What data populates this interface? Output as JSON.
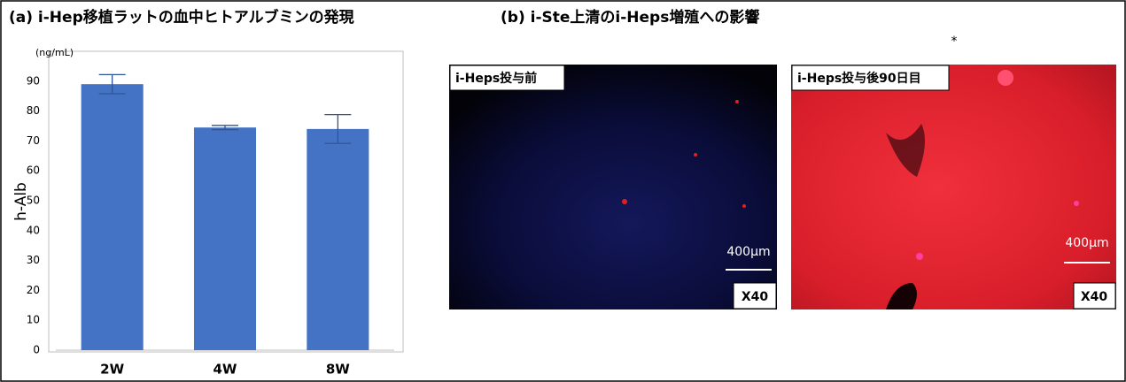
{
  "chart_data": {
    "type": "bar",
    "title": "(a) i-Hep移植ラットの血中ヒトアルブミンの発現",
    "y_label": "h-Alb",
    "unit_label": "(ng/mL)",
    "categories": [
      "2W",
      "4W",
      "8W"
    ],
    "values": [
      89,
      74.5,
      74
    ],
    "errors": [
      3.2,
      0.7,
      4.8
    ],
    "color": "#4472c4",
    "ylim": [
      0,
      100
    ],
    "yticks": [
      0,
      10,
      20,
      30,
      40,
      50,
      60,
      70,
      80,
      90
    ],
    "grid": false
  },
  "panel_b": {
    "title": "(b) i-Ste上清のi-Heps増殖への影響",
    "note": "*",
    "images": [
      {
        "label": "i-Heps投与前",
        "scale": "400μm",
        "magnification": "X40"
      },
      {
        "label": "i-Heps投与後90日目",
        "scale": "400μm",
        "magnification": "X40"
      }
    ]
  }
}
